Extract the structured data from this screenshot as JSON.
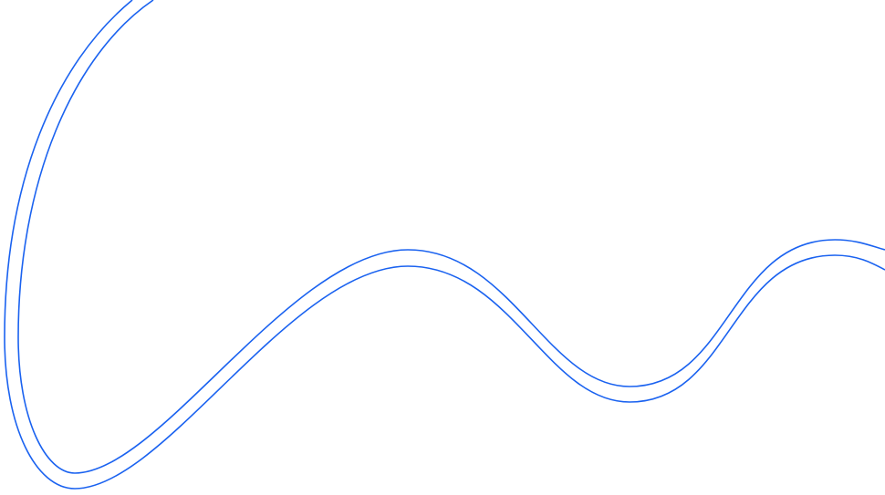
{
  "background_color": "#ffffff",
  "line_color": "#1a62f0",
  "decoration": {
    "type": "double-wave-line"
  }
}
